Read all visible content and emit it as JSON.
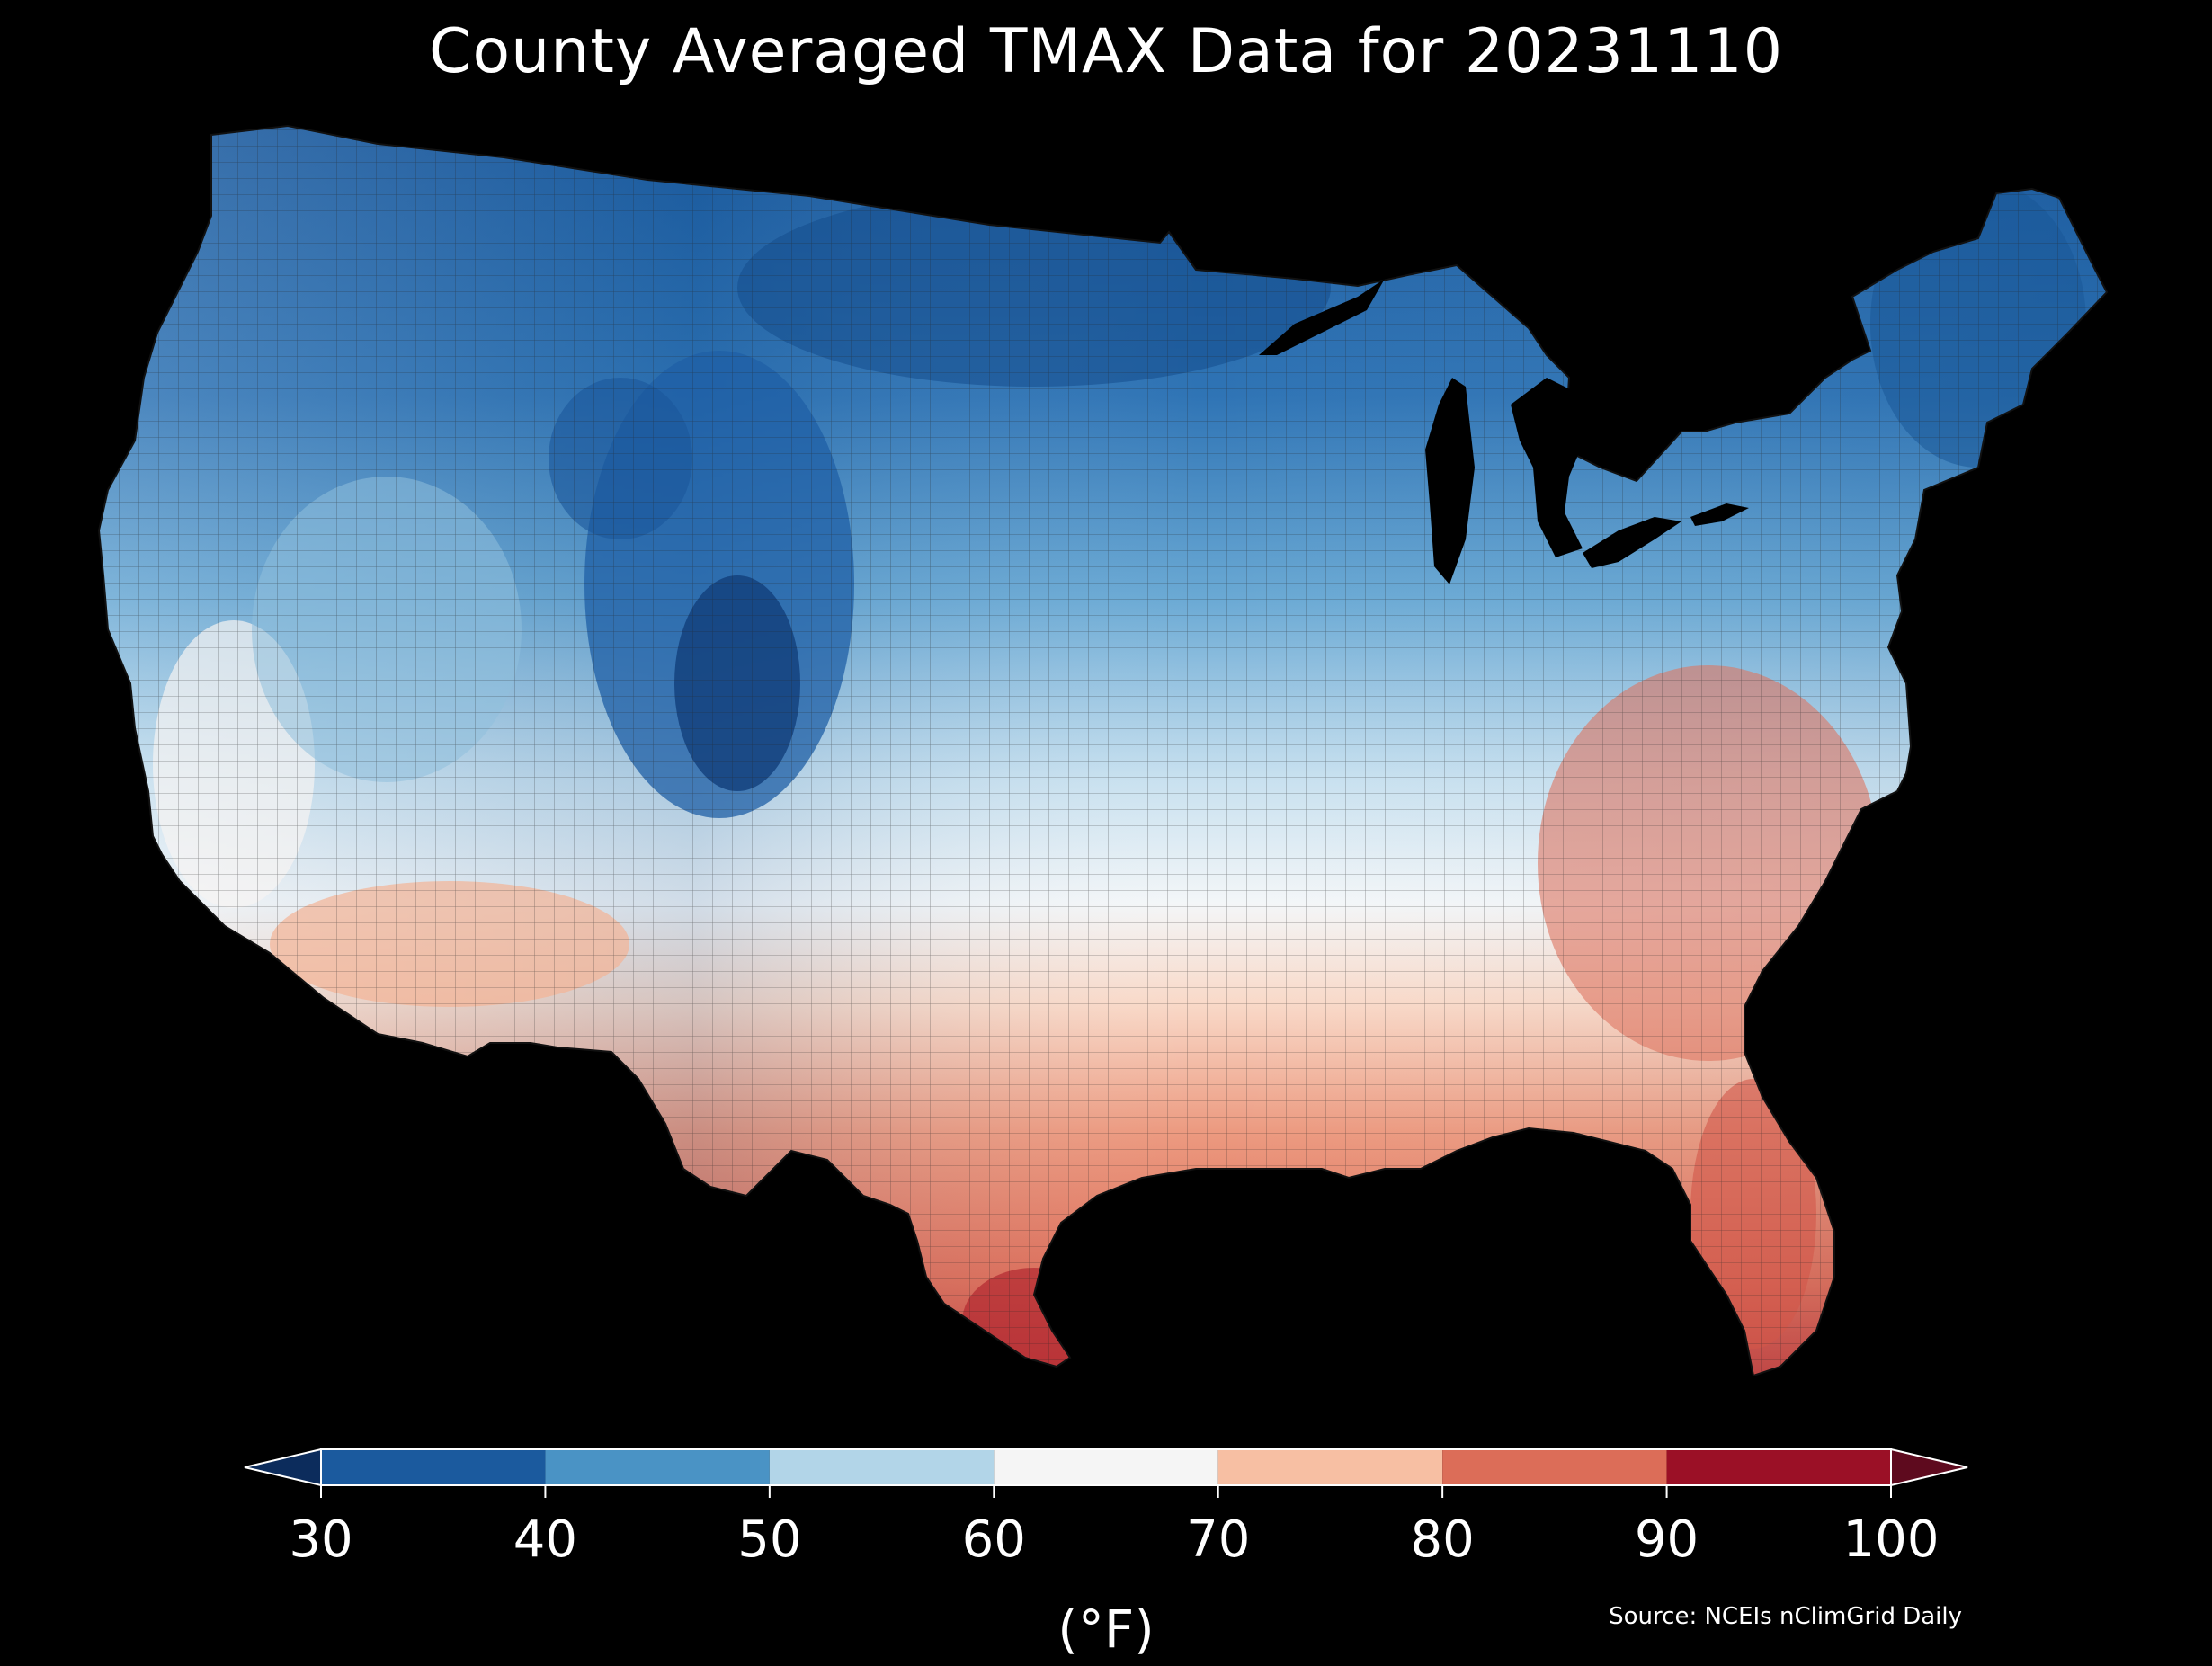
{
  "title": "County Averaged TMAX Data for 20231110",
  "colorbar": {
    "ticks": [
      "30",
      "40",
      "50",
      "60",
      "70",
      "80",
      "90",
      "100"
    ],
    "bins": [
      {
        "from": 30,
        "to": 40,
        "color": "#1b5a9e"
      },
      {
        "from": 40,
        "to": 50,
        "color": "#4a93c5"
      },
      {
        "from": 50,
        "to": 60,
        "color": "#b2d5e8"
      },
      {
        "from": 60,
        "to": 70,
        "color": "#f5f5f5"
      },
      {
        "from": 70,
        "to": 80,
        "color": "#f7bfa3"
      },
      {
        "from": 80,
        "to": 90,
        "color": "#dc6d58"
      },
      {
        "from": 90,
        "to": 100,
        "color": "#9b1026"
      }
    ],
    "under_color": "#0c2c5c",
    "over_color": "#5e0a1e",
    "unit": "(°F)"
  },
  "source": "Source: NCEIs nClimGrid Daily"
}
